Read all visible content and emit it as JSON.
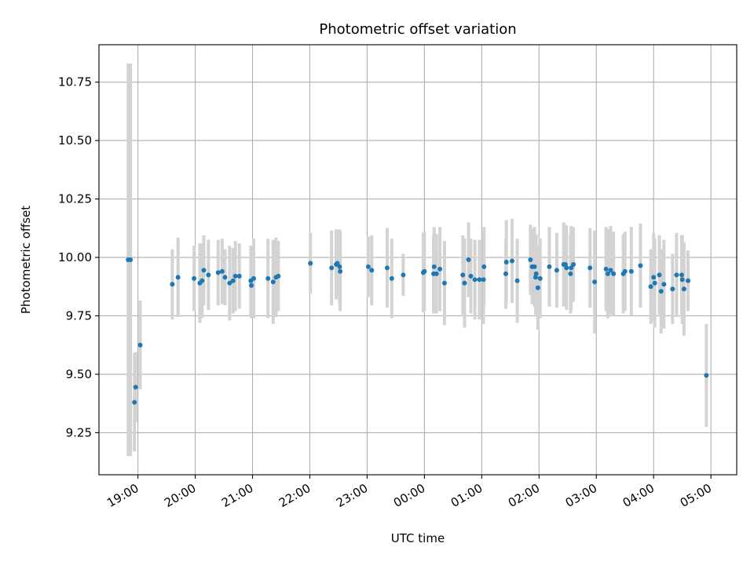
{
  "chart_data": {
    "type": "scatter",
    "title": "Photometric offset variation",
    "xlabel": "UTC time",
    "ylabel": "Photometric offset",
    "grid": true,
    "x_unit": "hours since 19:00 UTC",
    "xlim": [
      -0.68,
      10.45
    ],
    "ylim": [
      9.07,
      10.91
    ],
    "x_ticks": [
      {
        "value": 0,
        "label": "19:00"
      },
      {
        "value": 1,
        "label": "20:00"
      },
      {
        "value": 2,
        "label": "21:00"
      },
      {
        "value": 3,
        "label": "22:00"
      },
      {
        "value": 4,
        "label": "23:00"
      },
      {
        "value": 5,
        "label": "00:00"
      },
      {
        "value": 6,
        "label": "01:00"
      },
      {
        "value": 7,
        "label": "02:00"
      },
      {
        "value": 8,
        "label": "03:00"
      },
      {
        "value": 9,
        "label": "04:00"
      },
      {
        "value": 10,
        "label": "05:00"
      }
    ],
    "y_ticks": [
      {
        "value": 9.25,
        "label": "9.25"
      },
      {
        "value": 9.5,
        "label": "9.50"
      },
      {
        "value": 9.75,
        "label": "9.75"
      },
      {
        "value": 10.0,
        "label": "10.00"
      },
      {
        "value": 10.25,
        "label": "10.25"
      },
      {
        "value": 10.5,
        "label": "10.50"
      },
      {
        "value": 10.75,
        "label": "10.75"
      }
    ],
    "series": [
      {
        "name": "Photometric offset",
        "point_color": "#1f77b4",
        "errorbar_color": "#d3d3d3",
        "points": [
          [
            -0.17,
            9.99,
            0.84
          ],
          [
            -0.13,
            9.99,
            0.84
          ],
          [
            -0.06,
            9.38,
            0.21
          ],
          [
            -0.04,
            9.445,
            0.15
          ],
          [
            0.04,
            9.625,
            0.19
          ],
          [
            0.6,
            9.885,
            0.15
          ],
          [
            0.7,
            9.915,
            0.17
          ],
          [
            0.98,
            9.91,
            0.14
          ],
          [
            1.08,
            9.89,
            0.17
          ],
          [
            1.12,
            9.9,
            0.16
          ],
          [
            1.15,
            9.945,
            0.15
          ],
          [
            1.23,
            9.925,
            0.15
          ],
          [
            1.4,
            9.935,
            0.14
          ],
          [
            1.47,
            9.94,
            0.14
          ],
          [
            1.52,
            9.915,
            0.12
          ],
          [
            1.6,
            9.89,
            0.16
          ],
          [
            1.66,
            9.9,
            0.14
          ],
          [
            1.7,
            9.92,
            0.15
          ],
          [
            1.77,
            9.92,
            0.14
          ],
          [
            1.97,
            9.9,
            0.15
          ],
          [
            1.98,
            9.88,
            0.14
          ],
          [
            2.02,
            9.91,
            0.17
          ],
          [
            2.27,
            9.91,
            0.17
          ],
          [
            2.36,
            9.895,
            0.18
          ],
          [
            2.41,
            9.915,
            0.17
          ],
          [
            2.45,
            9.92,
            0.15
          ],
          [
            3.01,
            9.975,
            0.13
          ],
          [
            3.38,
            9.955,
            0.16
          ],
          [
            3.46,
            9.97,
            0.15
          ],
          [
            3.48,
            9.975,
            0.14
          ],
          [
            3.52,
            9.96,
            0.16
          ],
          [
            3.53,
            9.94,
            0.17
          ],
          [
            4.02,
            9.96,
            0.13
          ],
          [
            4.08,
            9.945,
            0.15
          ],
          [
            4.35,
            9.955,
            0.17
          ],
          [
            4.43,
            9.91,
            0.17
          ],
          [
            4.63,
            9.925,
            0.09
          ],
          [
            4.98,
            9.935,
            0.17
          ],
          [
            5.0,
            9.94,
            0.17
          ],
          [
            5.16,
            9.93,
            0.17
          ],
          [
            5.17,
            9.96,
            0.17
          ],
          [
            5.21,
            9.93,
            0.17
          ],
          [
            5.27,
            9.95,
            0.18
          ],
          [
            5.35,
            9.89,
            0.18
          ],
          [
            5.67,
            9.925,
            0.17
          ],
          [
            5.7,
            9.89,
            0.19
          ],
          [
            5.77,
            9.99,
            0.16
          ],
          [
            5.81,
            9.92,
            0.16
          ],
          [
            5.88,
            9.905,
            0.17
          ],
          [
            5.96,
            9.905,
            0.17
          ],
          [
            6.03,
            9.905,
            0.19
          ],
          [
            6.04,
            9.96,
            0.17
          ],
          [
            6.42,
            9.93,
            0.15
          ],
          [
            6.43,
            9.98,
            0.18
          ],
          [
            6.53,
            9.985,
            0.18
          ],
          [
            6.62,
            9.9,
            0.18
          ],
          [
            6.85,
            9.99,
            0.15
          ],
          [
            6.88,
            9.96,
            0.16
          ],
          [
            6.92,
            9.96,
            0.17
          ],
          [
            6.94,
            9.915,
            0.16
          ],
          [
            6.95,
            9.93,
            0.17
          ],
          [
            6.98,
            9.87,
            0.18
          ],
          [
            7.02,
            9.91,
            0.17
          ],
          [
            7.18,
            9.96,
            0.17
          ],
          [
            7.31,
            9.945,
            0.16
          ],
          [
            7.43,
            9.97,
            0.18
          ],
          [
            7.46,
            9.97,
            0.17
          ],
          [
            7.48,
            9.955,
            0.18
          ],
          [
            7.55,
            9.93,
            0.17
          ],
          [
            7.56,
            9.955,
            0.18
          ],
          [
            7.6,
            9.97,
            0.16
          ],
          [
            7.89,
            9.955,
            0.17
          ],
          [
            7.97,
            9.895,
            0.22
          ],
          [
            8.17,
            9.95,
            0.18
          ],
          [
            8.2,
            9.93,
            0.19
          ],
          [
            8.25,
            9.945,
            0.19
          ],
          [
            8.3,
            9.93,
            0.18
          ],
          [
            8.47,
            9.93,
            0.17
          ],
          [
            8.5,
            9.94,
            0.17
          ],
          [
            8.61,
            9.94,
            0.19
          ],
          [
            8.77,
            9.965,
            0.18
          ],
          [
            8.95,
            9.875,
            0.16
          ],
          [
            9.0,
            9.915,
            0.19
          ],
          [
            9.02,
            9.89,
            0.19
          ],
          [
            9.1,
            9.925,
            0.17
          ],
          [
            9.13,
            9.855,
            0.18
          ],
          [
            9.18,
            9.885,
            0.19
          ],
          [
            9.33,
            9.865,
            0.15
          ],
          [
            9.4,
            9.925,
            0.18
          ],
          [
            9.49,
            9.925,
            0.17
          ],
          [
            9.5,
            9.905,
            0.19
          ],
          [
            9.53,
            9.865,
            0.2
          ],
          [
            9.6,
            9.9,
            0.13
          ],
          [
            9.92,
            9.495,
            0.22
          ]
        ]
      }
    ]
  }
}
